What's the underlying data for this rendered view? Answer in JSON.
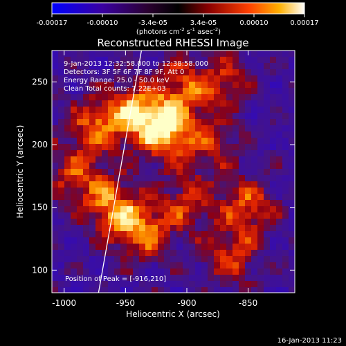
{
  "chart_data": {
    "type": "heatmap",
    "title": "Reconstructed RHESSI Image",
    "xlabel": "Heliocentric X (arcsec)",
    "ylabel": "Heliocentric Y (arcsec)",
    "xlim": [
      -1010,
      -812
    ],
    "ylim": [
      82,
      275
    ],
    "xticks": [
      -1000,
      -950,
      -900,
      -850
    ],
    "yticks": [
      100,
      150,
      200,
      250
    ],
    "colorbar": {
      "ticks": [
        "-0.00017",
        "-0.00010",
        "-3.4e-05",
        "3.4e-05",
        "0.00010",
        "0.00017"
      ],
      "unit_prefix": "(photons cm",
      "unit_sup1": "-2",
      "unit_mid": " s",
      "unit_sup2": "-1",
      "unit_mid2": " asec",
      "unit_sup3": "-2",
      "unit_suffix": ")",
      "range": [
        -0.00017,
        0.00017
      ]
    },
    "annotations": [
      "9-Jan-2013 12:32:58.000 to 12:38:58.000",
      "Detectors: 3F 5F 6F 7F 8F 9F, Att 0",
      "Energy Range: 25.0 - 50.0 keV",
      "Clean    Total counts: 7.22E+03"
    ],
    "peak_label": "Position of Peak = [-916,210]",
    "peak": [
      -916,
      210
    ],
    "limb_line": [
      [
        -972,
        82
      ],
      [
        -937,
        275
      ]
    ],
    "hotspots": [
      {
        "x": -975,
        "y": 215,
        "v": 0.00012
      },
      {
        "x": -942,
        "y": 225,
        "v": 0.00015
      },
      {
        "x": -916,
        "y": 210,
        "v": 0.00017
      },
      {
        "x": -905,
        "y": 245,
        "v": 0.00011
      },
      {
        "x": -870,
        "y": 250,
        "v": 9e-05
      },
      {
        "x": -960,
        "y": 150,
        "v": 0.00014
      },
      {
        "x": -935,
        "y": 130,
        "v": 0.00013
      },
      {
        "x": -900,
        "y": 155,
        "v": 0.0001
      },
      {
        "x": -850,
        "y": 150,
        "v": 0.00012
      },
      {
        "x": -865,
        "y": 110,
        "v": 0.0001
      },
      {
        "x": -990,
        "y": 175,
        "v": 0.00011
      },
      {
        "x": -880,
        "y": 200,
        "v": 8e-05
      }
    ]
  },
  "footer": {
    "timestamp": "16-Jan-2013 11:23"
  }
}
